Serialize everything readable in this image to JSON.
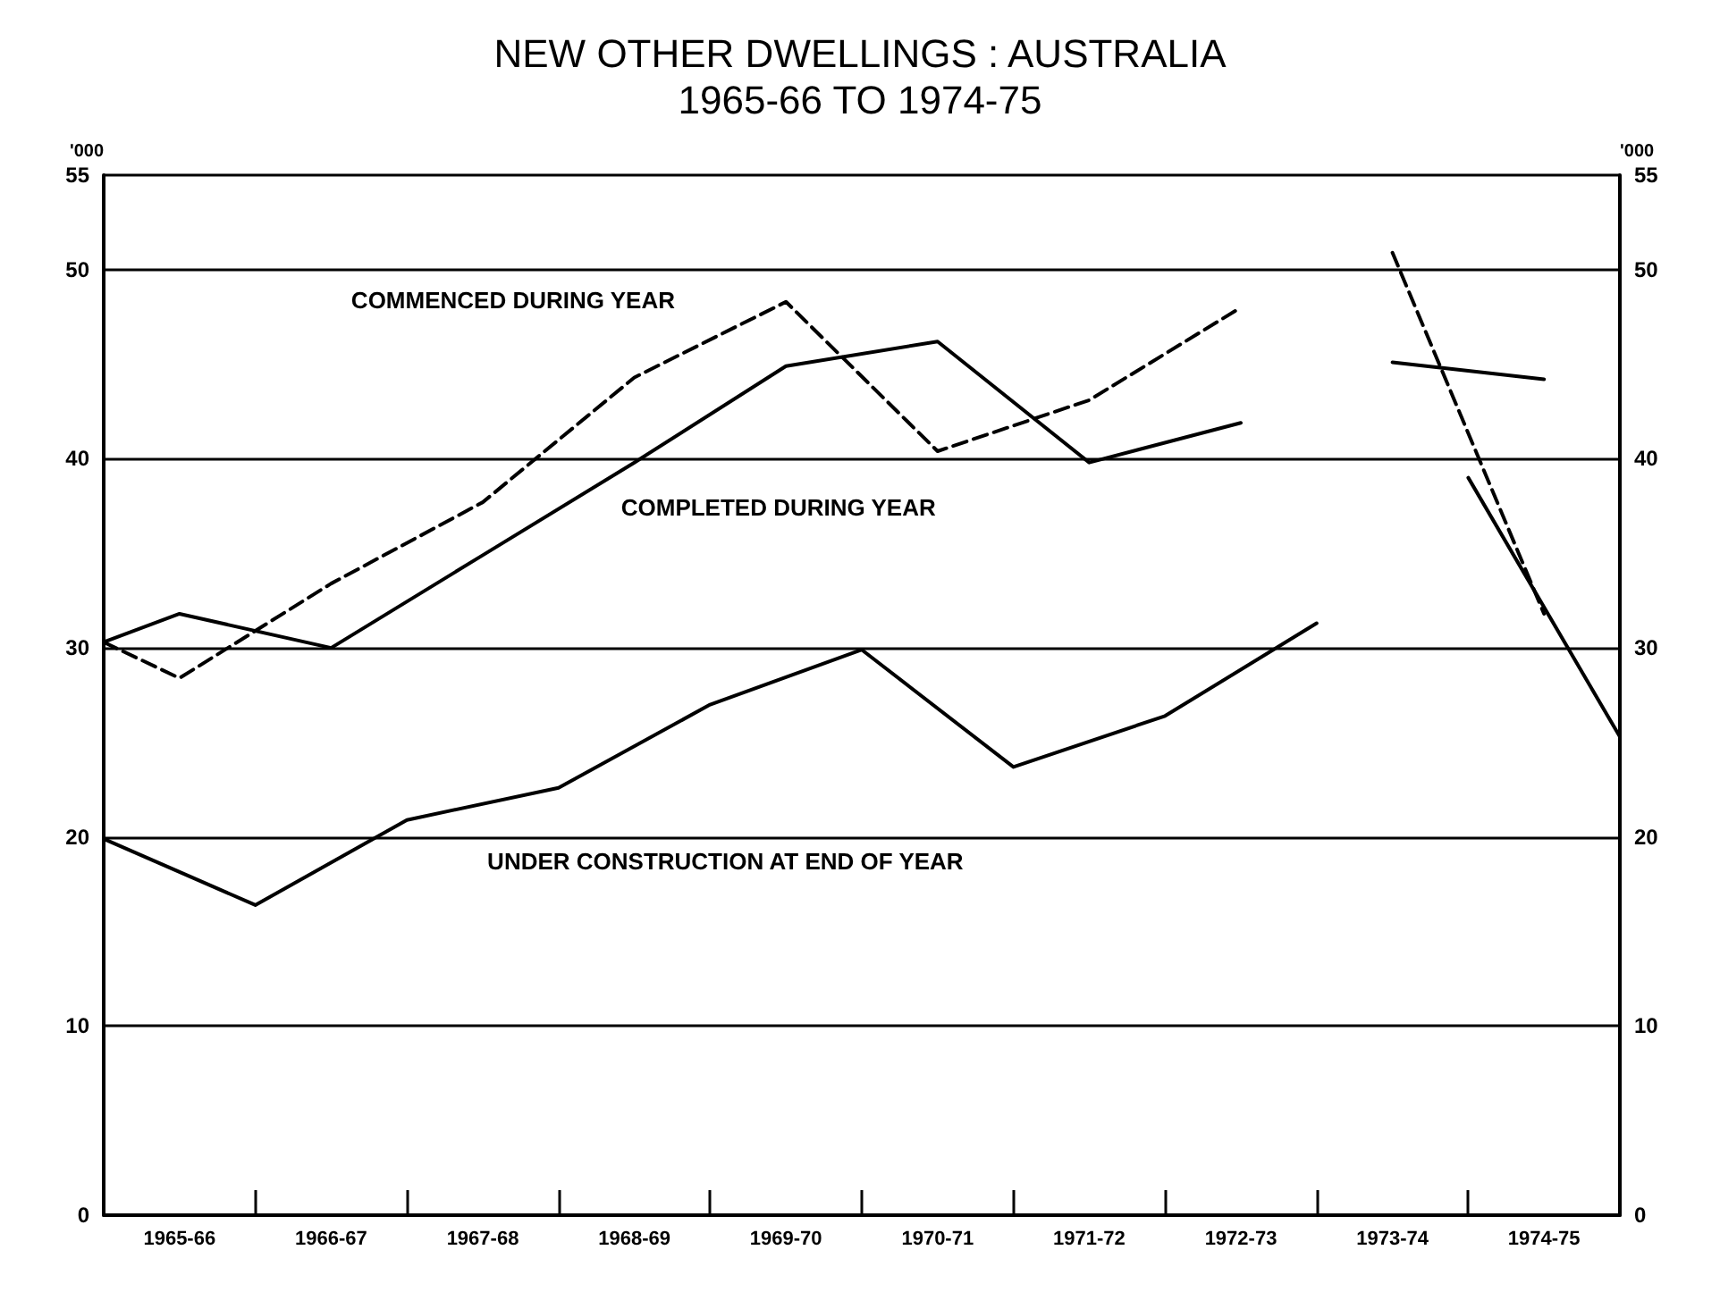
{
  "chart_data": {
    "type": "line",
    "title": "NEW OTHER DWELLINGS : AUSTRALIA",
    "subtitle": "1965-66 TO 1974-75",
    "ylabel": "'000",
    "y2label": "'000",
    "categories": [
      null,
      "1965-66",
      null,
      "1966-67",
      null,
      "1967-68",
      null,
      "1968-69",
      null,
      "1969-70",
      null,
      "1970-71",
      null,
      "1971-72",
      null,
      "1972-73",
      null,
      "1973-74",
      null,
      "1974-75",
      null
    ],
    "ylim": [
      0,
      55
    ],
    "yticks": [
      0,
      10,
      20,
      30,
      40,
      50,
      55
    ],
    "y2lim": [
      0,
      55
    ],
    "y2ticks": [
      0,
      10,
      20,
      30,
      40,
      50,
      55
    ],
    "grid": "y",
    "marker": "none",
    "series": [
      {
        "color": "#000000",
        "line_style": "dashed",
        "values": [
          30.3,
          28.4,
          null,
          33.4,
          null,
          37.7,
          null,
          44.3,
          null,
          48.3,
          null,
          40.4,
          null,
          43.1,
          null,
          48.0,
          null,
          null,
          null,
          null,
          null
        ]
      },
      {
        "color": "#000000",
        "line_style": "dashed",
        "values": [
          null,
          null,
          null,
          null,
          null,
          null,
          null,
          null,
          null,
          null,
          null,
          null,
          null,
          null,
          null,
          null,
          null,
          50.9,
          null,
          31.8,
          null
        ]
      },
      {
        "color": "#000000",
        "line_style": "solid",
        "values": [
          30.3,
          31.8,
          null,
          30.0,
          null,
          34.9,
          null,
          39.8,
          null,
          44.9,
          null,
          46.2,
          null,
          39.8,
          null,
          41.9,
          null,
          null,
          null,
          null,
          null
        ]
      },
      {
        "color": "#000000",
        "line_style": "solid",
        "values": [
          null,
          null,
          null,
          null,
          null,
          null,
          null,
          null,
          null,
          null,
          null,
          null,
          null,
          null,
          null,
          null,
          null,
          45.1,
          null,
          44.2,
          null
        ]
      },
      {
        "color": "#000000",
        "line_style": "solid",
        "values": [
          19.9,
          null,
          16.4,
          null,
          20.9,
          null,
          22.6,
          null,
          27.0,
          null,
          29.9,
          null,
          23.7,
          null,
          26.4,
          null,
          31.3,
          null,
          null,
          null,
          null
        ]
      },
      {
        "color": "#000000",
        "line_style": "solid",
        "values": [
          null,
          null,
          null,
          null,
          null,
          null,
          null,
          null,
          null,
          null,
          null,
          null,
          null,
          null,
          null,
          null,
          null,
          null,
          39.0,
          null,
          25.3
        ]
      }
    ],
    "annotations": [
      "COMMENCED DURING YEAR",
      "COMPLETED DURING YEAR",
      "UNDER CONSTRUCTION AT END OF YEAR"
    ]
  }
}
